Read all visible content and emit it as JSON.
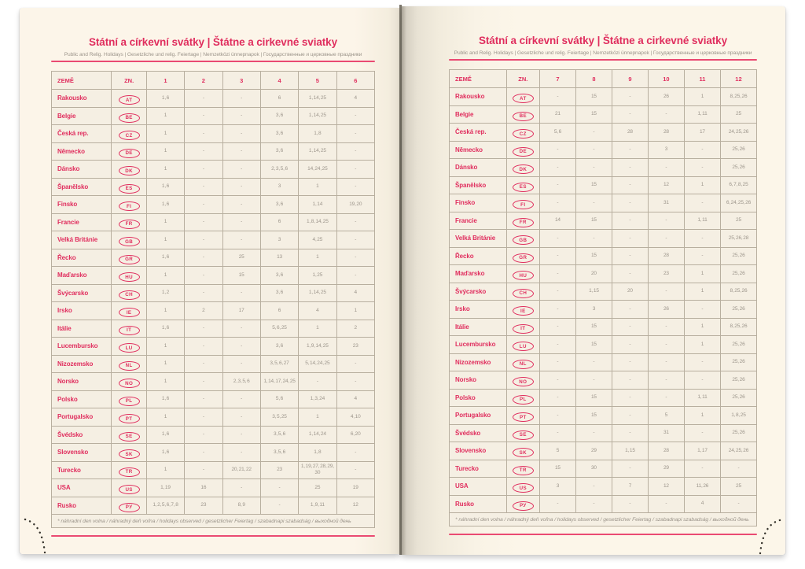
{
  "colors": {
    "accent": "#e02e5e",
    "rule": "#ea4a72",
    "grid": "#b8af9f",
    "number_text": "#9c958b",
    "page_background": "#fbf4e7"
  },
  "pages": [
    {
      "side": "left",
      "title": "Státní a církevní svátky | Štátne a cirkevné sviatky",
      "subtitle": "Public and Relig. Holidays | Gesetzliche und relig. Feiertage | Nemzetközi ünnepnapok | Государственные и церковные праздники",
      "columns": [
        "ZEMĚ",
        "ZN.",
        "1",
        "2",
        "3",
        "4",
        "5",
        "6"
      ],
      "rows": [
        {
          "country": "Rakousko",
          "code": "AT",
          "months": [
            "1, 6",
            "-",
            "-",
            "6",
            "1, 14, 25",
            "4"
          ]
        },
        {
          "country": "Belgie",
          "code": "BE",
          "months": [
            "1",
            "-",
            "-",
            "3, 6",
            "1, 14, 25",
            "-"
          ]
        },
        {
          "country": "Česká rep.",
          "code": "CZ",
          "months": [
            "1",
            "-",
            "-",
            "3, 6",
            "1, 8",
            "-"
          ]
        },
        {
          "country": "Německo",
          "code": "DE",
          "months": [
            "1",
            "-",
            "-",
            "3, 6",
            "1, 14, 25",
            "-"
          ]
        },
        {
          "country": "Dánsko",
          "code": "DK",
          "months": [
            "1",
            "-",
            "-",
            "2, 3, 5, 6",
            "14, 24, 25",
            "-"
          ]
        },
        {
          "country": "Španělsko",
          "code": "ES",
          "months": [
            "1, 6",
            "-",
            "-",
            "3",
            "1",
            "-"
          ]
        },
        {
          "country": "Finsko",
          "code": "FI",
          "months": [
            "1, 6",
            "-",
            "-",
            "3, 6",
            "1, 14",
            "19, 20"
          ]
        },
        {
          "country": "Francie",
          "code": "FR",
          "months": [
            "1",
            "-",
            "-",
            "6",
            "1, 8, 14, 25",
            "-"
          ]
        },
        {
          "country": "Velká Británie",
          "code": "GB",
          "months": [
            "1",
            "-",
            "-",
            "3",
            "4, 25",
            "-"
          ]
        },
        {
          "country": "Řecko",
          "code": "GR",
          "months": [
            "1, 6",
            "-",
            "25",
            "13",
            "1",
            "-"
          ]
        },
        {
          "country": "Maďarsko",
          "code": "HU",
          "months": [
            "1",
            "-",
            "15",
            "3, 6",
            "1, 25",
            "-"
          ]
        },
        {
          "country": "Švýcarsko",
          "code": "CH",
          "months": [
            "1, 2",
            "-",
            "-",
            "3, 6",
            "1, 14, 25",
            "4"
          ]
        },
        {
          "country": "Irsko",
          "code": "IE",
          "months": [
            "1",
            "2",
            "17",
            "6",
            "4",
            "1"
          ]
        },
        {
          "country": "Itálie",
          "code": "IT",
          "months": [
            "1, 6",
            "-",
            "-",
            "5, 6, 25",
            "1",
            "2"
          ]
        },
        {
          "country": "Lucembursko",
          "code": "LU",
          "months": [
            "1",
            "-",
            "-",
            "3, 6",
            "1, 9, 14, 25",
            "23"
          ]
        },
        {
          "country": "Nizozemsko",
          "code": "NL",
          "months": [
            "1",
            "-",
            "-",
            "3, 5, 6, 27",
            "5, 14, 24, 25",
            "-"
          ]
        },
        {
          "country": "Norsko",
          "code": "NO",
          "months": [
            "1",
            "-",
            "2, 3, 5, 6",
            "1, 14, 17, 24, 25",
            "-",
            "-"
          ]
        },
        {
          "country": "Polsko",
          "code": "PL",
          "months": [
            "1, 6",
            "-",
            "-",
            "5, 6",
            "1, 3, 24",
            "4"
          ]
        },
        {
          "country": "Portugalsko",
          "code": "PT",
          "months": [
            "1",
            "-",
            "-",
            "3, 5, 25",
            "1",
            "4, 10"
          ]
        },
        {
          "country": "Švédsko",
          "code": "SE",
          "months": [
            "1, 6",
            "-",
            "-",
            "3, 5, 6",
            "1, 14, 24",
            "6, 20"
          ]
        },
        {
          "country": "Slovensko",
          "code": "SK",
          "months": [
            "1, 6",
            "-",
            "-",
            "3, 5, 6",
            "1, 8",
            "-"
          ]
        },
        {
          "country": "Turecko",
          "code": "TR",
          "months": [
            "1",
            "-",
            "20, 21, 22",
            "23",
            "1, 19, 27, 28, 29, 30",
            "-"
          ]
        },
        {
          "country": "USA",
          "code": "US",
          "months": [
            "1, 19",
            "16",
            "-",
            "-",
            "25",
            "19"
          ]
        },
        {
          "country": "Rusko",
          "code": "РУ",
          "months": [
            "1, 2, 5, 6, 7, 8",
            "23",
            "8, 9",
            "-",
            "1, 9, 11",
            "12"
          ]
        }
      ],
      "footnote": "* náhradní den volna / náhradný deň voľna / holidays observed / gesetzlicher Feiertag / szabadnapi szabadság / выходной день"
    },
    {
      "side": "right",
      "title": "Státní a církevní svátky | Štátne a cirkevné sviatky",
      "subtitle": "Public and Relig. Holidays | Gesetzliche und relig. Feiertage | Nemzetközi ünnepnapok | Государственные и церковные праздники",
      "columns": [
        "ZEMĚ",
        "ZN.",
        "7",
        "8",
        "9",
        "10",
        "11",
        "12"
      ],
      "rows": [
        {
          "country": "Rakousko",
          "code": "AT",
          "months": [
            "-",
            "15",
            "-",
            "26",
            "1",
            "8, 25, 26"
          ]
        },
        {
          "country": "Belgie",
          "code": "BE",
          "months": [
            "21",
            "15",
            "-",
            "-",
            "1, 11",
            "25"
          ]
        },
        {
          "country": "Česká rep.",
          "code": "CZ",
          "months": [
            "5, 6",
            "-",
            "28",
            "28",
            "17",
            "24, 25, 26"
          ]
        },
        {
          "country": "Německo",
          "code": "DE",
          "months": [
            "-",
            "-",
            "-",
            "3",
            "-",
            "25, 26"
          ]
        },
        {
          "country": "Dánsko",
          "code": "DK",
          "months": [
            "-",
            "-",
            "-",
            "-",
            "-",
            "25, 26"
          ]
        },
        {
          "country": "Španělsko",
          "code": "ES",
          "months": [
            "-",
            "15",
            "-",
            "12",
            "1",
            "6, 7, 8, 25"
          ]
        },
        {
          "country": "Finsko",
          "code": "FI",
          "months": [
            "-",
            "-",
            "-",
            "31",
            "-",
            "6, 24, 25, 26"
          ]
        },
        {
          "country": "Francie",
          "code": "FR",
          "months": [
            "14",
            "15",
            "-",
            "-",
            "1, 11",
            "25"
          ]
        },
        {
          "country": "Velká Británie",
          "code": "GB",
          "months": [
            "-",
            "-",
            "-",
            "-",
            "-",
            "25, 26, 28"
          ]
        },
        {
          "country": "Řecko",
          "code": "GR",
          "months": [
            "-",
            "15",
            "-",
            "28",
            "-",
            "25, 26"
          ]
        },
        {
          "country": "Maďarsko",
          "code": "HU",
          "months": [
            "-",
            "20",
            "-",
            "23",
            "1",
            "25, 26"
          ]
        },
        {
          "country": "Švýcarsko",
          "code": "CH",
          "months": [
            "-",
            "1, 15",
            "20",
            "-",
            "1",
            "8, 25, 26"
          ]
        },
        {
          "country": "Irsko",
          "code": "IE",
          "months": [
            "-",
            "3",
            "-",
            "26",
            "-",
            "25, 26"
          ]
        },
        {
          "country": "Itálie",
          "code": "IT",
          "months": [
            "-",
            "15",
            "-",
            "-",
            "1",
            "8, 25, 26"
          ]
        },
        {
          "country": "Lucembursko",
          "code": "LU",
          "months": [
            "-",
            "15",
            "-",
            "-",
            "1",
            "25, 26"
          ]
        },
        {
          "country": "Nizozemsko",
          "code": "NL",
          "months": [
            "-",
            "-",
            "-",
            "-",
            "-",
            "25, 26"
          ]
        },
        {
          "country": "Norsko",
          "code": "NO",
          "months": [
            "-",
            "-",
            "-",
            "-",
            "-",
            "25, 26"
          ]
        },
        {
          "country": "Polsko",
          "code": "PL",
          "months": [
            "-",
            "15",
            "-",
            "-",
            "1, 11",
            "25, 26"
          ]
        },
        {
          "country": "Portugalsko",
          "code": "PT",
          "months": [
            "-",
            "15",
            "-",
            "5",
            "1",
            "1, 8, 25"
          ]
        },
        {
          "country": "Švédsko",
          "code": "SE",
          "months": [
            "-",
            "-",
            "-",
            "31",
            "-",
            "25, 26"
          ]
        },
        {
          "country": "Slovensko",
          "code": "SK",
          "months": [
            "5",
            "29",
            "1, 15",
            "28",
            "1, 17",
            "24, 25, 26"
          ]
        },
        {
          "country": "Turecko",
          "code": "TR",
          "months": [
            "15",
            "30",
            "-",
            "29",
            "-",
            "-"
          ]
        },
        {
          "country": "USA",
          "code": "US",
          "months": [
            "3",
            "-",
            "7",
            "12",
            "11, 26",
            "25"
          ]
        },
        {
          "country": "Rusko",
          "code": "РУ",
          "months": [
            "-",
            "-",
            "-",
            "-",
            "4",
            "-"
          ]
        }
      ],
      "footnote": "* náhradní den volna / náhradný deň voľna / holidays observed / gesetzlicher Feiertag / szabadnapi szabadság / выходной день"
    }
  ]
}
